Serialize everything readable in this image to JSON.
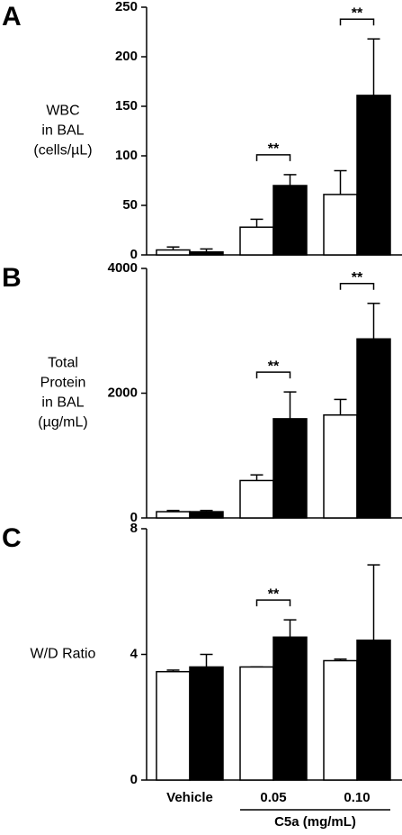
{
  "chart_data": [
    {
      "type": "bar",
      "panel": "A",
      "ylabel": [
        "WBC",
        "in BAL",
        "(cells/µL)"
      ],
      "categories": [
        "Vehicle",
        "0.05",
        "0.10"
      ],
      "series": [
        {
          "color": "#ffffff",
          "values": [
            5,
            28,
            61
          ],
          "errors": [
            3,
            8,
            24
          ]
        },
        {
          "color": "#000000",
          "values": [
            3,
            70,
            161
          ],
          "errors": [
            3,
            11,
            57
          ]
        }
      ],
      "annotations": [
        null,
        "**",
        "**"
      ],
      "ylim": [
        0,
        250
      ],
      "yticks": [
        0,
        50,
        100,
        150,
        200,
        250
      ]
    },
    {
      "type": "bar",
      "panel": "B",
      "ylabel": [
        "Total",
        "Protein",
        "in BAL",
        "(µg/mL)"
      ],
      "categories": [
        "Vehicle",
        "0.05",
        "0.10"
      ],
      "series": [
        {
          "color": "#ffffff",
          "values": [
            100,
            600,
            1650
          ],
          "errors": [
            20,
            90,
            250
          ]
        },
        {
          "color": "#000000",
          "values": [
            100,
            1590,
            2870
          ],
          "errors": [
            20,
            430,
            570
          ]
        }
      ],
      "annotations": [
        null,
        "**",
        "**"
      ],
      "ylim": [
        0,
        4000
      ],
      "yticks": [
        0,
        2000,
        4000
      ]
    },
    {
      "type": "bar",
      "panel": "C",
      "ylabel": [
        "W/D Ratio"
      ],
      "categories": [
        "Vehicle",
        "0.05",
        "0.10"
      ],
      "series": [
        {
          "color": "#ffffff",
          "values": [
            3.45,
            3.6,
            3.8
          ],
          "errors": [
            0.05,
            0,
            0.05
          ]
        },
        {
          "color": "#000000",
          "values": [
            3.6,
            4.55,
            4.45
          ],
          "errors": [
            0.4,
            0.55,
            2.4
          ]
        }
      ],
      "annotations": [
        null,
        "**",
        null
      ],
      "xlabel": "C5a (mg/mL)",
      "ylim": [
        0,
        8
      ],
      "yticks": [
        0,
        4,
        8
      ]
    }
  ]
}
